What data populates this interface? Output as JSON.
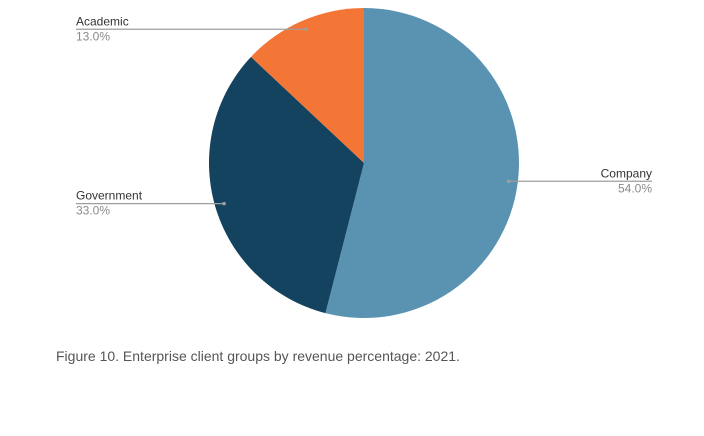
{
  "chart_data": {
    "type": "pie",
    "title": "",
    "start_angle_deg": 0,
    "direction": "clockwise",
    "slices": [
      {
        "label": "Company",
        "value": 54.0,
        "pct_label": "54.0%",
        "color": "#5a93b1"
      },
      {
        "label": "Government",
        "value": 33.0,
        "pct_label": "33.0%",
        "color": "#13435e"
      },
      {
        "label": "Academic",
        "value": 13.0,
        "pct_label": "13.0%",
        "color": "#f47637"
      }
    ],
    "leader_line_color": "#9e9e9e"
  },
  "caption": "Figure 10. Enterprise client groups by revenue percentage: 2021."
}
